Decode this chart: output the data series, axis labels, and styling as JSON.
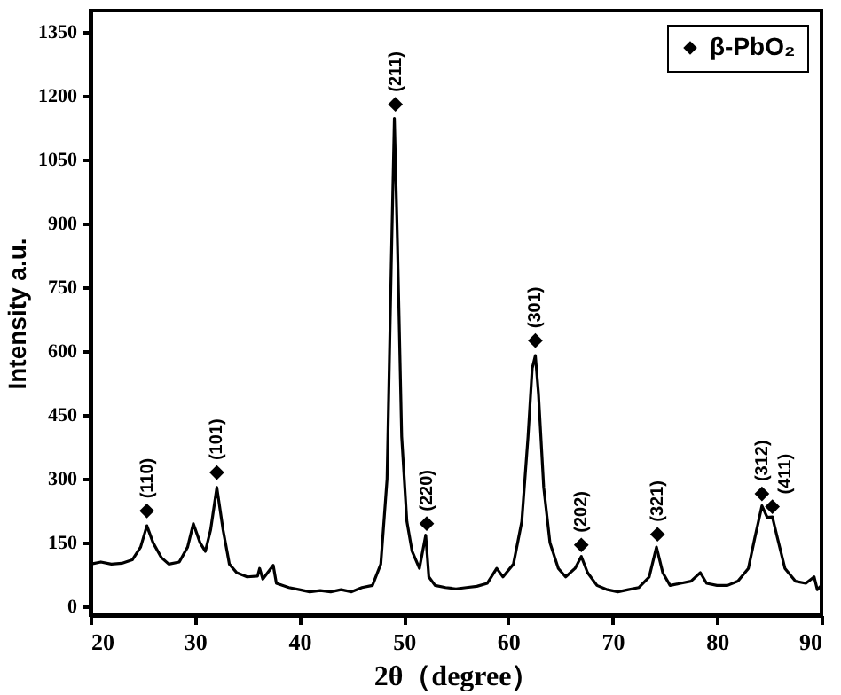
{
  "chart_data": {
    "type": "line",
    "xlabel": "2θ（degree）",
    "ylabel": "Intensity a.u.",
    "xlim": [
      20,
      90
    ],
    "xticks": [
      20,
      30,
      40,
      50,
      60,
      70,
      80,
      90
    ],
    "ylim": [
      -20,
      1400
    ],
    "yticks": [
      0,
      150,
      300,
      450,
      600,
      750,
      900,
      1050,
      1200,
      1350
    ],
    "grid": false,
    "legend": "top right",
    "series": [
      {
        "color": "#000000",
        "line_style": "solid",
        "x": [
          20,
          21,
          22,
          23,
          24,
          24.8,
          25.4,
          26,
          26.8,
          27.5,
          28.5,
          29.3,
          29.85,
          30.5,
          31,
          31.5,
          32.1,
          32.7,
          33.3,
          34,
          35,
          36,
          36.2,
          36.5,
          37.5,
          37.8,
          39,
          40,
          41,
          42,
          43,
          44,
          45,
          46,
          47,
          47.8,
          48.4,
          48.8,
          49.1,
          49.4,
          49.8,
          50.3,
          50.8,
          51.5,
          52.1,
          52.4,
          53,
          54,
          55,
          56,
          57,
          58,
          58.9,
          59.5,
          60.5,
          61.3,
          61.9,
          62.3,
          62.6,
          62.9,
          63.4,
          64,
          64.8,
          65.5,
          66.4,
          67,
          67.6,
          68.5,
          69.5,
          70.5,
          71.5,
          72.5,
          73.5,
          74.2,
          74.8,
          75.5,
          76.5,
          77.5,
          78.4,
          79,
          80,
          81,
          82,
          83,
          83.6,
          84.3,
          84.8,
          85.3,
          85.8,
          86.5,
          87.5,
          88.5,
          89.3,
          89.6,
          90
        ],
        "values": [
          100,
          105,
          100,
          102,
          110,
          140,
          190,
          150,
          115,
          100,
          105,
          140,
          195,
          150,
          130,
          180,
          280,
          180,
          100,
          80,
          70,
          72,
          90,
          65,
          97,
          55,
          45,
          40,
          35,
          38,
          35,
          40,
          35,
          45,
          50,
          100,
          300,
          800,
          1147,
          850,
          400,
          200,
          130,
          90,
          168,
          70,
          50,
          45,
          42,
          45,
          48,
          55,
          90,
          70,
          100,
          200,
          400,
          560,
          590,
          500,
          280,
          150,
          90,
          70,
          90,
          118,
          80,
          50,
          40,
          35,
          40,
          45,
          70,
          140,
          80,
          50,
          55,
          60,
          80,
          55,
          50,
          50,
          60,
          90,
          160,
          237,
          210,
          211,
          160,
          90,
          60,
          55,
          70,
          40,
          50
        ]
      },
      {
        "type": "scatter",
        "name": "β-PbO₂",
        "color": "#000000",
        "marker": "diamond",
        "x": [
          25.4,
          32.1,
          49.2,
          52.2,
          62.6,
          67.0,
          74.3,
          84.3,
          85.3
        ],
        "values": [
          225,
          315,
          1180,
          195,
          625,
          145,
          170,
          265,
          235
        ]
      }
    ],
    "annotations": [
      {
        "text": "(110)",
        "x": 25.4,
        "y": 225
      },
      {
        "text": "(101)",
        "x": 32.1,
        "y": 315
      },
      {
        "text": "(211)",
        "x": 49.2,
        "y": 1180
      },
      {
        "text": "(220)",
        "x": 52.2,
        "y": 195
      },
      {
        "text": "(301)",
        "x": 62.6,
        "y": 625
      },
      {
        "text": "(202)",
        "x": 67.0,
        "y": 145
      },
      {
        "text": "(321)",
        "x": 74.3,
        "y": 170
      },
      {
        "text": "(312)",
        "x": 84.3,
        "y": 265
      },
      {
        "text": "(411)",
        "x": 85.3,
        "y": 235
      }
    ]
  }
}
